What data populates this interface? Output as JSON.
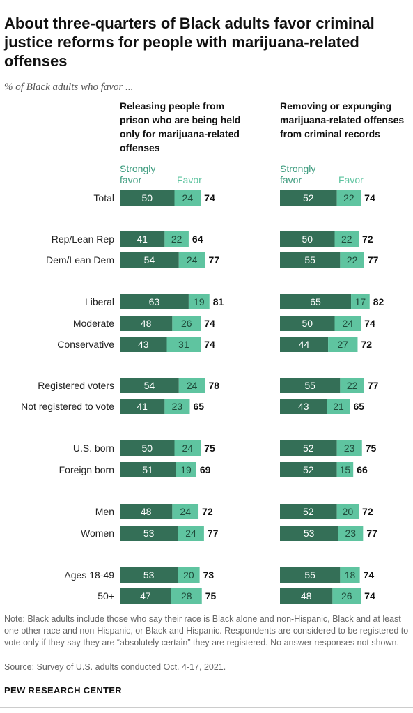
{
  "title": "About three-quarters of Black adults favor criminal justice reforms for people with marijuana-related offenses",
  "subtitle": "% of Black adults who favor ...",
  "legend": {
    "strongly": "Strongly favor",
    "favor": "Favor"
  },
  "colors": {
    "strongly": "#346f57",
    "favor": "#5fc4a0",
    "strongly_label": "#3a9a7c"
  },
  "chart_data": [
    {
      "type": "bar",
      "stacked": true,
      "orientation": "horizontal",
      "title": "Releasing people from prison who are being held only for marijuana-related offenses",
      "categories": [
        "Total",
        "Rep/Lean Rep",
        "Dem/Lean Dem",
        "Liberal",
        "Moderate",
        "Conservative",
        "Registered voters",
        "Not registered to vote",
        "U.S. born",
        "Foreign born",
        "Men",
        "Women",
        "Ages 18-49",
        "50+"
      ],
      "series": [
        {
          "name": "Strongly favor",
          "values": [
            50,
            41,
            54,
            63,
            48,
            43,
            54,
            41,
            50,
            51,
            48,
            53,
            53,
            47
          ]
        },
        {
          "name": "Favor",
          "values": [
            24,
            22,
            24,
            19,
            26,
            31,
            24,
            23,
            24,
            19,
            24,
            24,
            20,
            28
          ]
        }
      ],
      "totals": [
        74,
        64,
        77,
        81,
        74,
        74,
        78,
        65,
        75,
        69,
        72,
        77,
        73,
        75
      ]
    },
    {
      "type": "bar",
      "stacked": true,
      "orientation": "horizontal",
      "title": "Removing or expunging marijuana-related offenses from criminal records",
      "categories": [
        "Total",
        "Rep/Lean Rep",
        "Dem/Lean Dem",
        "Liberal",
        "Moderate",
        "Conservative",
        "Registered voters",
        "Not registered to vote",
        "U.S. born",
        "Foreign born",
        "Men",
        "Women",
        "Ages 18-49",
        "50+"
      ],
      "series": [
        {
          "name": "Strongly favor",
          "values": [
            52,
            50,
            55,
            65,
            50,
            44,
            55,
            43,
            52,
            52,
            52,
            53,
            55,
            48
          ]
        },
        {
          "name": "Favor",
          "values": [
            22,
            22,
            22,
            17,
            24,
            27,
            22,
            21,
            23,
            15,
            20,
            23,
            18,
            26
          ]
        }
      ],
      "totals": [
        74,
        72,
        77,
        82,
        74,
        72,
        77,
        65,
        75,
        66,
        72,
        77,
        74,
        74
      ]
    }
  ],
  "note": "Note: Black adults include those who say their race is Black alone and non-Hispanic, Black and at least one other race and non-Hispanic, or Black and Hispanic. Respondents are considered to be registered to vote only if they say they are “absolutely certain” they are registered. No answer responses not shown.",
  "source": "Source: Survey of U.S. adults conducted Oct. 4-17, 2021.",
  "org": "PEW RESEARCH CENTER"
}
